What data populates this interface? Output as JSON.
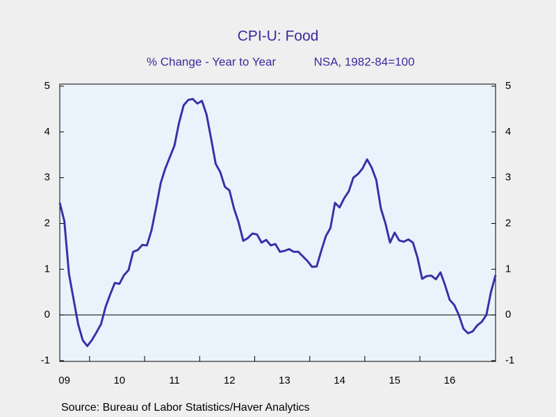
{
  "chart_data": {
    "type": "line",
    "title": "CPI-U: Food",
    "subtitle": "% Change - Year to Year",
    "note": "NSA, 1982-84=100",
    "source": "Source:  Bureau of Labor Statistics/Haver Analytics",
    "color": "#3b2fa8",
    "categories": [
      null,
      "09",
      null,
      null,
      null,
      null,
      null,
      null,
      null,
      null,
      null,
      null,
      null,
      "10",
      null,
      null,
      null,
      null,
      null,
      null,
      null,
      null,
      null,
      null,
      null,
      "11",
      null,
      null,
      null,
      null,
      null,
      null,
      null,
      null,
      null,
      null,
      null,
      "12",
      null,
      null,
      null,
      null,
      null,
      null,
      null,
      null,
      null,
      null,
      null,
      "13",
      null,
      null,
      null,
      null,
      null,
      null,
      null,
      null,
      null,
      null,
      null,
      "14",
      null,
      null,
      null,
      null,
      null,
      null,
      null,
      null,
      null,
      null,
      null,
      "15",
      null,
      null,
      null,
      null,
      null,
      null,
      null,
      null,
      null,
      null,
      null,
      "16",
      null,
      null,
      null,
      null,
      null,
      null,
      null,
      null,
      null,
      null
    ],
    "values": [
      2.45,
      2.05,
      0.9,
      0.35,
      -0.2,
      -0.55,
      -0.68,
      -0.55,
      -0.38,
      -0.2,
      0.18,
      0.45,
      0.7,
      0.68,
      0.87,
      0.98,
      1.38,
      1.42,
      1.53,
      1.52,
      1.85,
      2.35,
      2.88,
      3.2,
      3.45,
      3.7,
      4.2,
      4.58,
      4.7,
      4.72,
      4.62,
      4.68,
      4.38,
      3.85,
      3.3,
      3.12,
      2.8,
      2.72,
      2.32,
      2.02,
      1.62,
      1.68,
      1.78,
      1.76,
      1.58,
      1.64,
      1.52,
      1.55,
      1.38,
      1.4,
      1.44,
      1.38,
      1.38,
      1.28,
      1.18,
      1.05,
      1.06,
      1.4,
      1.72,
      1.9,
      2.45,
      2.35,
      2.55,
      2.7,
      3.0,
      3.08,
      3.2,
      3.4,
      3.22,
      2.95,
      2.33,
      2.0,
      1.58,
      1.8,
      1.63,
      1.6,
      1.65,
      1.58,
      1.25,
      0.79,
      0.85,
      0.86,
      0.78,
      0.93,
      0.65,
      0.33,
      0.22,
      0.0,
      -0.3,
      -0.4,
      -0.36,
      -0.23,
      -0.15,
      0.0,
      0.5,
      0.87
    ],
    "ylim": [
      -1,
      5
    ],
    "yticks": [
      -1,
      0,
      1,
      2,
      3,
      4,
      5
    ]
  }
}
